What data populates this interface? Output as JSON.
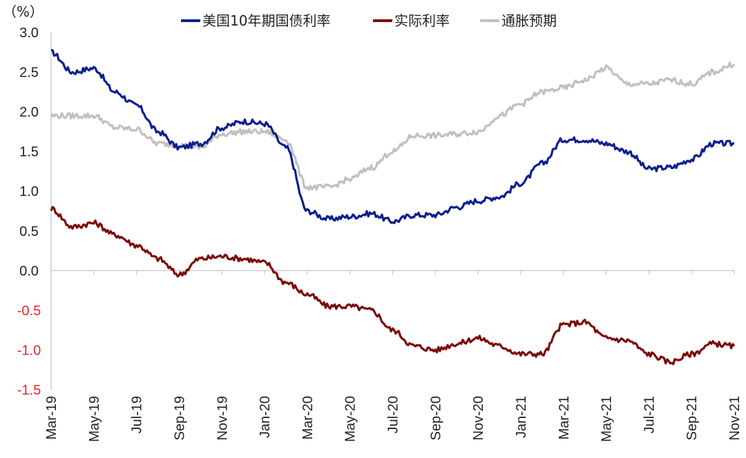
{
  "chart_data": {
    "type": "line",
    "unit_label": "（%）",
    "ylim": [
      -1.5,
      3.0
    ],
    "y_ticks": [
      3.0,
      2.5,
      2.0,
      1.5,
      1.0,
      0.5,
      0.0,
      -0.5,
      -1.0,
      -1.5
    ],
    "y_tick_labels": [
      "3.0",
      "2.5",
      "2.0",
      "1.5",
      "1.0",
      "0.5",
      "0.0",
      "-0.5",
      "-1.0",
      "-1.5"
    ],
    "x_tick_labels": [
      "Mar-19",
      "May-19",
      "Jul-19",
      "Sep-19",
      "Nov-19",
      "Jan-20",
      "Mar-20",
      "May-20",
      "Jul-20",
      "Sep-20",
      "Nov-20",
      "Jan-21",
      "Mar-21",
      "May-21",
      "Jul-21",
      "Sep-21",
      "Nov-21"
    ],
    "x_range": [
      "2019-03",
      "2021-11"
    ],
    "grid": false,
    "legend_position": "top",
    "x": [
      "2019-03",
      "2019-04",
      "2019-05",
      "2019-06",
      "2019-07",
      "2019-08",
      "2019-09",
      "2019-10",
      "2019-11",
      "2019-12",
      "2020-01",
      "2020-02",
      "2020-03",
      "2020-04",
      "2020-05",
      "2020-06",
      "2020-07",
      "2020-08",
      "2020-09",
      "2020-10",
      "2020-11",
      "2020-12",
      "2021-01",
      "2021-02",
      "2021-03",
      "2021-04",
      "2021-05",
      "2021-06",
      "2021-07",
      "2021-08",
      "2021-09",
      "2021-10",
      "2021-11"
    ],
    "series": [
      {
        "name": "美国10年期国债利率",
        "color": "#0d1f8c",
        "values": [
          2.75,
          2.5,
          2.55,
          2.25,
          2.08,
          1.75,
          1.55,
          1.6,
          1.8,
          1.88,
          1.85,
          1.55,
          0.75,
          0.65,
          0.68,
          0.72,
          0.62,
          0.7,
          0.7,
          0.8,
          0.88,
          0.93,
          1.1,
          1.35,
          1.65,
          1.65,
          1.6,
          1.5,
          1.28,
          1.3,
          1.4,
          1.6,
          1.6
        ]
      },
      {
        "name": "实际利率",
        "color": "#7b0b0b",
        "values": [
          0.78,
          0.55,
          0.6,
          0.45,
          0.32,
          0.15,
          -0.05,
          0.15,
          0.18,
          0.15,
          0.1,
          -0.15,
          -0.3,
          -0.45,
          -0.45,
          -0.5,
          -0.75,
          -0.95,
          -1.0,
          -0.92,
          -0.85,
          -0.95,
          -1.05,
          -1.05,
          -0.68,
          -0.65,
          -0.85,
          -0.88,
          -1.05,
          -1.15,
          -1.05,
          -0.92,
          -0.95
        ]
      },
      {
        "name": "通胀预期",
        "color": "#c0c0c0",
        "values": [
          1.95,
          1.95,
          1.95,
          1.8,
          1.78,
          1.6,
          1.58,
          1.55,
          1.72,
          1.75,
          1.75,
          1.65,
          1.05,
          1.05,
          1.15,
          1.3,
          1.5,
          1.7,
          1.7,
          1.72,
          1.75,
          1.95,
          2.1,
          2.25,
          2.3,
          2.4,
          2.55,
          2.35,
          2.35,
          2.4,
          2.35,
          2.5,
          2.6
        ]
      }
    ]
  }
}
